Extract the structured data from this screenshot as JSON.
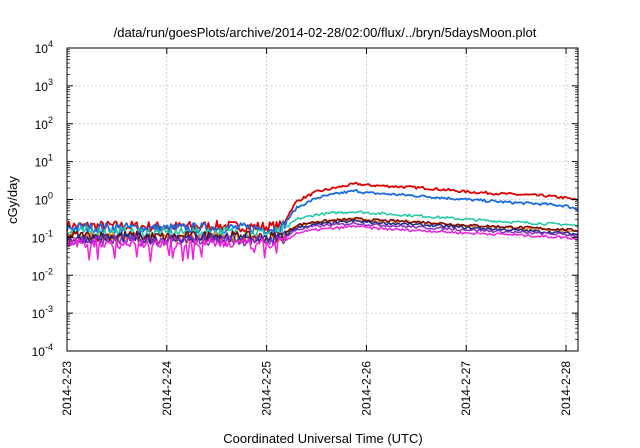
{
  "chart_data": {
    "type": "line",
    "title": "/data/run/goesPlots/archive/2014-02-28/02:00/flux/../bryn/5daysMoon.plot",
    "xlabel": "Coordinated Universal Time (UTC)",
    "ylabel": "cGy/day",
    "y_scale": "log",
    "ylim": [
      0.0001,
      10000
    ],
    "xlim": [
      0,
      5.12
    ],
    "x_unit": "days since 2014-2-23 00:00",
    "grid": true,
    "legend": "none",
    "x_ticks": [
      {
        "value": 0,
        "label": "2014-2-23"
      },
      {
        "value": 1,
        "label": "2014-2-24"
      },
      {
        "value": 2,
        "label": "2014-2-25"
      },
      {
        "value": 3,
        "label": "2014-2-26"
      },
      {
        "value": 4,
        "label": "2014-2-27"
      },
      {
        "value": 5,
        "label": "2014-2-28"
      }
    ],
    "y_ticks": [
      {
        "value": 0.0001,
        "base": "10",
        "exp": "-4"
      },
      {
        "value": 0.001,
        "base": "10",
        "exp": "-3"
      },
      {
        "value": 0.01,
        "base": "10",
        "exp": "-2"
      },
      {
        "value": 0.1,
        "base": "10",
        "exp": "-1"
      },
      {
        "value": 1,
        "base": "10",
        "exp": "0"
      },
      {
        "value": 10,
        "base": "10",
        "exp": "1"
      },
      {
        "value": 100,
        "base": "10",
        "exp": "2"
      },
      {
        "value": 1000,
        "base": "10",
        "exp": "3"
      },
      {
        "value": 10000,
        "base": "10",
        "exp": "4"
      }
    ],
    "series": [
      {
        "name": "series-red",
        "color": "#e00000",
        "x": [
          0,
          0.5,
          1.0,
          1.5,
          2.0,
          2.15,
          2.3,
          2.5,
          2.75,
          2.9,
          3.0,
          3.3,
          3.6,
          4.0,
          4.4,
          4.8,
          5.0,
          5.12
        ],
        "y": [
          0.2,
          0.2,
          0.19,
          0.2,
          0.19,
          0.2,
          0.9,
          1.6,
          2.2,
          2.6,
          2.4,
          2.2,
          2.0,
          1.6,
          1.4,
          1.25,
          1.1,
          0.95
        ]
      },
      {
        "name": "series-blue",
        "color": "#1a6be0",
        "x": [
          0,
          0.5,
          1.0,
          1.5,
          2.0,
          2.15,
          2.3,
          2.5,
          2.75,
          2.9,
          3.0,
          3.3,
          3.6,
          4.0,
          4.4,
          4.8,
          5.0,
          5.12
        ],
        "y": [
          0.18,
          0.18,
          0.17,
          0.18,
          0.17,
          0.18,
          0.6,
          1.1,
          1.5,
          1.7,
          1.5,
          1.35,
          1.2,
          1.0,
          0.85,
          0.75,
          0.68,
          0.55
        ]
      },
      {
        "name": "series-teal",
        "color": "#1ec8a0",
        "x": [
          0,
          0.5,
          1.0,
          1.5,
          2.0,
          2.15,
          2.3,
          2.5,
          2.75,
          2.9,
          3.0,
          3.3,
          3.6,
          4.0,
          4.4,
          4.8,
          5.0,
          5.12
        ],
        "y": [
          0.14,
          0.14,
          0.13,
          0.14,
          0.13,
          0.14,
          0.3,
          0.4,
          0.46,
          0.48,
          0.45,
          0.4,
          0.36,
          0.3,
          0.26,
          0.23,
          0.22,
          0.2
        ]
      },
      {
        "name": "series-orange",
        "color": "#e89020",
        "x": [
          0,
          0.5,
          1.0,
          1.5,
          2.0,
          2.15,
          2.3,
          2.5,
          2.75,
          2.9,
          3.0,
          3.3,
          3.6,
          4.0,
          4.4,
          4.8,
          5.0,
          5.12
        ],
        "y": [
          0.1,
          0.1,
          0.09,
          0.1,
          0.09,
          0.1,
          0.2,
          0.25,
          0.28,
          0.3,
          0.28,
          0.26,
          0.24,
          0.2,
          0.18,
          0.16,
          0.15,
          0.14
        ]
      },
      {
        "name": "series-darkred",
        "color": "#7a0000",
        "x": [
          0,
          0.5,
          1.0,
          1.5,
          2.0,
          2.15,
          2.3,
          2.5,
          2.75,
          2.9,
          3.0,
          3.3,
          3.6,
          4.0,
          4.4,
          4.8,
          5.0,
          5.12
        ],
        "y": [
          0.11,
          0.11,
          0.1,
          0.11,
          0.1,
          0.11,
          0.21,
          0.26,
          0.29,
          0.31,
          0.29,
          0.27,
          0.25,
          0.21,
          0.19,
          0.17,
          0.16,
          0.15
        ]
      },
      {
        "name": "series-navy",
        "color": "#1a2a8a",
        "x": [
          0,
          0.5,
          1.0,
          1.5,
          2.0,
          2.15,
          2.3,
          2.5,
          2.75,
          2.9,
          3.0,
          3.3,
          3.6,
          4.0,
          4.4,
          4.8,
          5.0,
          5.12
        ],
        "y": [
          0.095,
          0.095,
          0.09,
          0.095,
          0.09,
          0.095,
          0.18,
          0.22,
          0.25,
          0.27,
          0.25,
          0.23,
          0.21,
          0.18,
          0.16,
          0.14,
          0.13,
          0.12
        ]
      },
      {
        "name": "series-purple",
        "color": "#8a30c0",
        "x": [
          0,
          0.5,
          1.0,
          1.5,
          2.0,
          2.15,
          2.3,
          2.5,
          2.75,
          2.9,
          3.0,
          3.3,
          3.6,
          4.0,
          4.4,
          4.8,
          5.0,
          5.12
        ],
        "y": [
          0.085,
          0.085,
          0.08,
          0.085,
          0.08,
          0.085,
          0.16,
          0.2,
          0.22,
          0.24,
          0.22,
          0.2,
          0.18,
          0.16,
          0.14,
          0.125,
          0.12,
          0.11
        ]
      },
      {
        "name": "series-magenta",
        "color": "#f020e0",
        "x": [
          0,
          0.5,
          1.0,
          1.5,
          2.0,
          2.15,
          2.3,
          2.5,
          2.75,
          2.9,
          3.0,
          3.3,
          3.6,
          4.0,
          4.4,
          4.8,
          5.0,
          5.12
        ],
        "y": [
          0.07,
          0.07,
          0.065,
          0.07,
          0.065,
          0.07,
          0.13,
          0.16,
          0.18,
          0.2,
          0.18,
          0.16,
          0.15,
          0.13,
          0.12,
          0.105,
          0.1,
          0.09
        ]
      }
    ]
  }
}
